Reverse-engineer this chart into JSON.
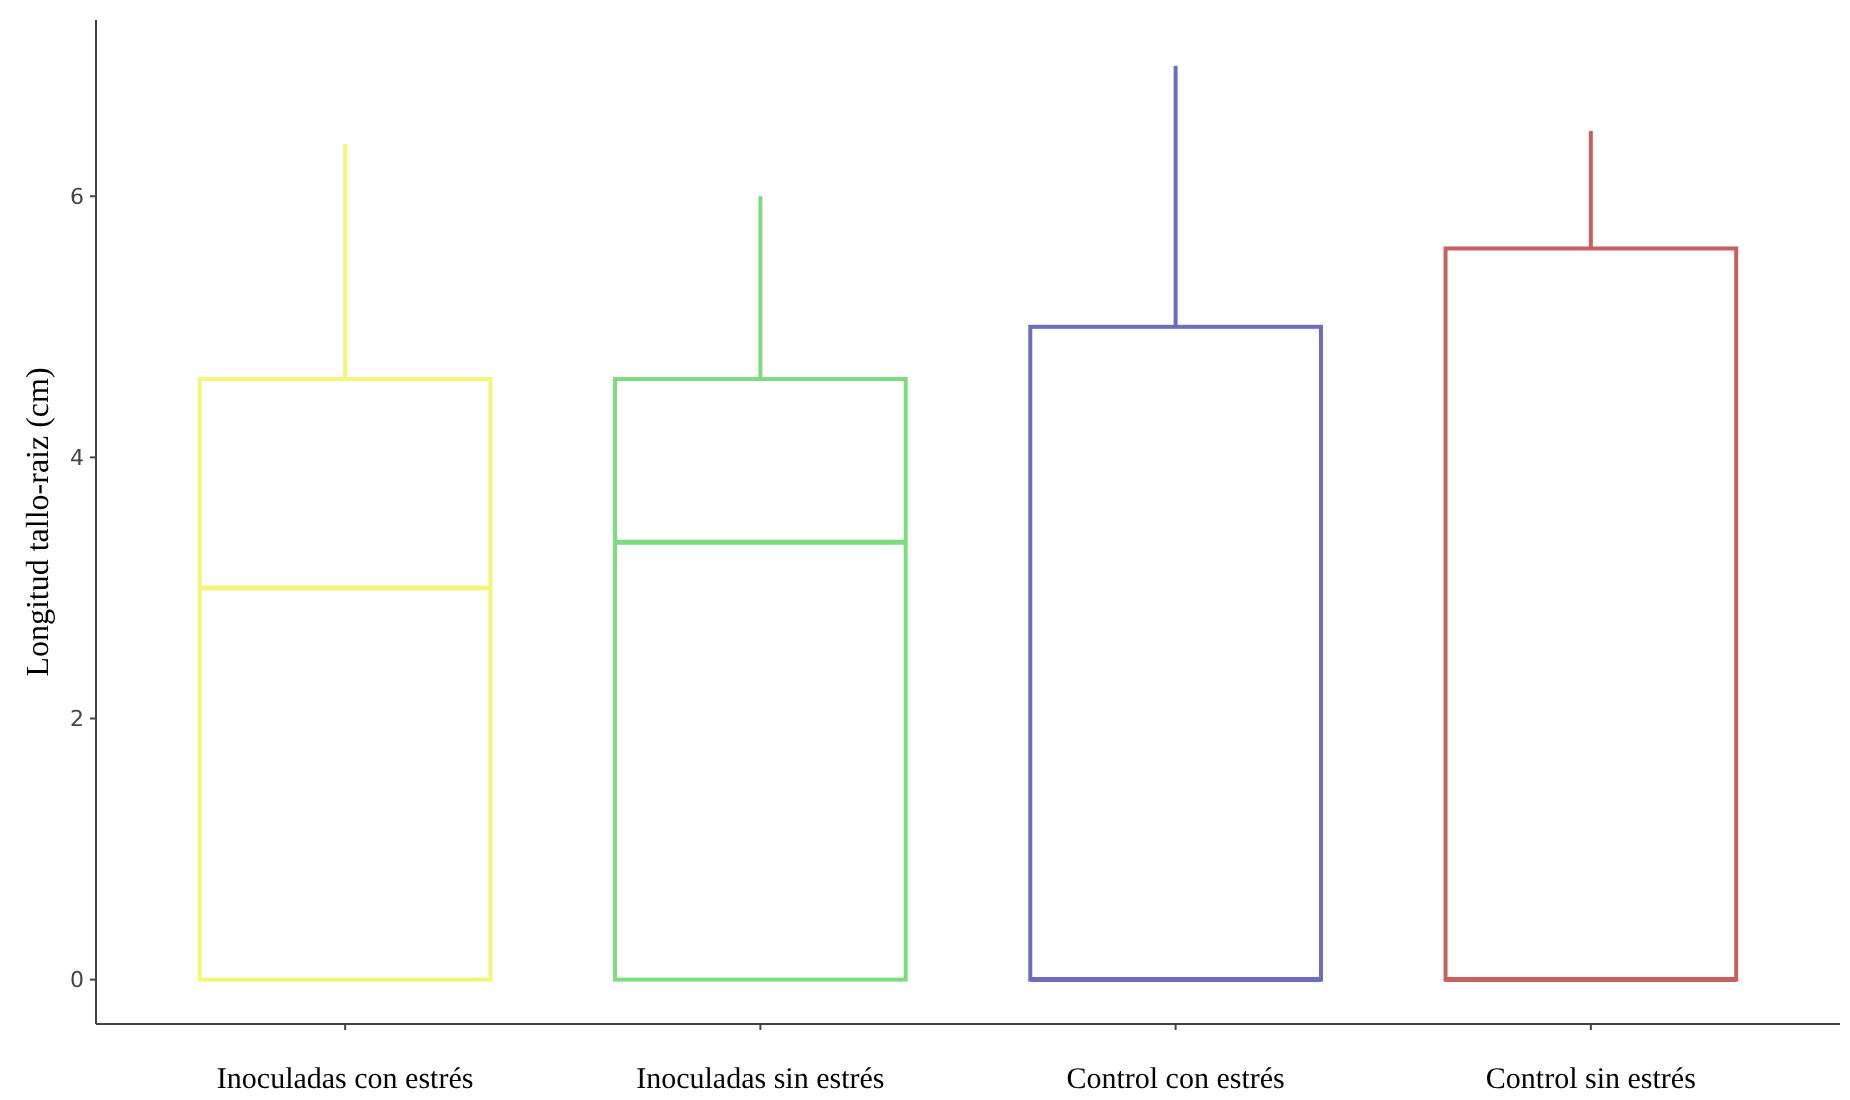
{
  "chart_data": {
    "type": "box",
    "ylabel": "Longitud tallo-raiz (cm)",
    "categories": [
      "Inoculadas con estrés",
      "Inoculadas sin estrés",
      "Control con estrés",
      "Control sin estrés"
    ],
    "colors": [
      "#f5f57a",
      "#7ddc7d",
      "#6c6cc0",
      "#c86060"
    ],
    "boxes": [
      {
        "low": 0,
        "q1": 0,
        "median": 3.0,
        "q3": 4.6,
        "high": 6.4
      },
      {
        "low": 0,
        "q1": 0,
        "median": 3.35,
        "q3": 4.6,
        "high": 6.0
      },
      {
        "low": 0,
        "q1": 0,
        "median": 0,
        "q3": 5.0,
        "high": 7.0
      },
      {
        "low": 0,
        "q1": 0,
        "median": 0,
        "q3": 5.6,
        "high": 6.5
      }
    ],
    "ylim": [
      -0.34,
      7.35
    ],
    "yticks": [
      0,
      2,
      4,
      6
    ],
    "grid": false
  }
}
